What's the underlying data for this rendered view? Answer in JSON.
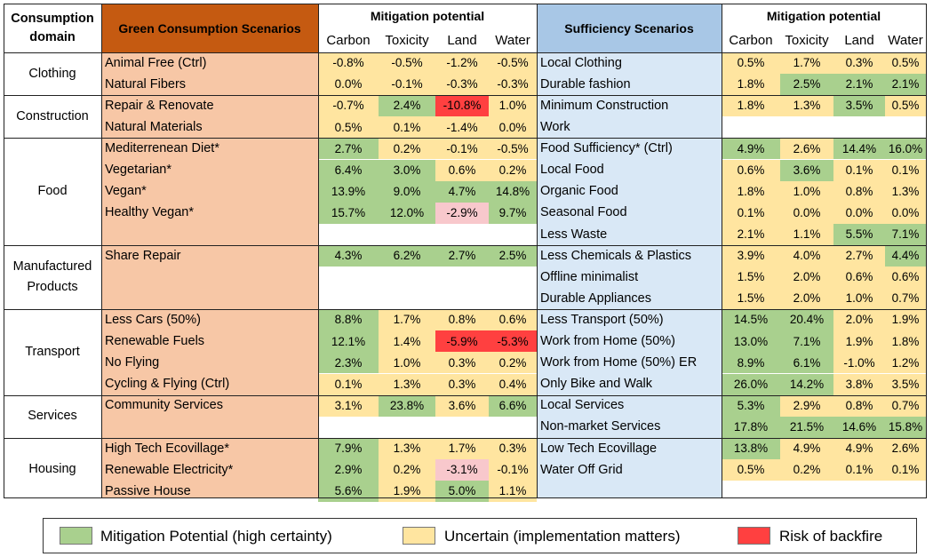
{
  "colors": {
    "green": "#a9d08e",
    "yellow": "#ffe5a0",
    "red": "#ff4040",
    "pink": "#f8c8cc",
    "orange_panel": "#f7c7a6",
    "orange_header": "#c55a11",
    "blue_panel": "#d9e8f6",
    "blue_header": "#a8c7e6"
  },
  "headers": {
    "domain": "Consumption domain",
    "green": "Green Consumption Scenarios",
    "mitig": "Mitigation potential",
    "suff": "Sufficiency Scenarios",
    "cols": [
      "Carbon",
      "Toxicity",
      "Land",
      "Water"
    ]
  },
  "domains": [
    "Clothing",
    "Construction",
    "Food",
    "Manufactured Products",
    "Transport",
    "Services",
    "Housing"
  ],
  "green_rows": [
    {
      "name": "Animal Free (Ctrl)",
      "vals": [
        "-0.8%",
        "-0.5%",
        "-1.2%",
        "-0.5%"
      ],
      "cls": [
        "y",
        "y",
        "y",
        "y"
      ]
    },
    {
      "name": "Natural Fibers",
      "vals": [
        "0.0%",
        "-0.1%",
        "-0.3%",
        "-0.3%"
      ],
      "cls": [
        "y",
        "y",
        "y",
        "y"
      ]
    },
    {
      "name": "Repair & Renovate",
      "vals": [
        "-0.7%",
        "2.4%",
        "-10.8%",
        "1.0%"
      ],
      "cls": [
        "y",
        "g",
        "r",
        "y"
      ]
    },
    {
      "name": "Natural Materials",
      "vals": [
        "0.5%",
        "0.1%",
        "-1.4%",
        "0.0%"
      ],
      "cls": [
        "y",
        "y",
        "y",
        "y"
      ]
    },
    {
      "name": "Mediterrenean Diet*",
      "vals": [
        "2.7%",
        "0.2%",
        "-0.1%",
        "-0.5%"
      ],
      "cls": [
        "g",
        "y",
        "y",
        "y"
      ]
    },
    {
      "name": "Vegetarian*",
      "vals": [
        "6.4%",
        "3.0%",
        "0.6%",
        "0.2%"
      ],
      "cls": [
        "g",
        "g",
        "y",
        "y"
      ]
    },
    {
      "name": "Vegan*",
      "vals": [
        "13.9%",
        "9.0%",
        "4.7%",
        "14.8%"
      ],
      "cls": [
        "g",
        "g",
        "g",
        "g"
      ]
    },
    {
      "name": "Healthy Vegan*",
      "vals": [
        "15.7%",
        "12.0%",
        "-2.9%",
        "9.7%"
      ],
      "cls": [
        "g",
        "g",
        "p",
        "g"
      ]
    },
    {
      "name": "",
      "vals": [
        "",
        "",
        "",
        ""
      ],
      "cls": [
        "w",
        "w",
        "w",
        "w"
      ]
    },
    {
      "name": "Share Repair",
      "vals": [
        "4.3%",
        "6.2%",
        "2.7%",
        "2.5%"
      ],
      "cls": [
        "g",
        "g",
        "g",
        "g"
      ]
    },
    {
      "name": "",
      "vals": [
        "",
        "",
        "",
        ""
      ],
      "cls": [
        "w",
        "w",
        "w",
        "w"
      ]
    },
    {
      "name": "",
      "vals": [
        "",
        "",
        "",
        ""
      ],
      "cls": [
        "w",
        "w",
        "w",
        "w"
      ]
    },
    {
      "name": "Less Cars (50%)",
      "vals": [
        "8.8%",
        "1.7%",
        "0.8%",
        "0.6%"
      ],
      "cls": [
        "g",
        "y",
        "y",
        "y"
      ]
    },
    {
      "name": "Renewable Fuels",
      "vals": [
        "12.1%",
        "1.4%",
        "-5.9%",
        "-5.3%"
      ],
      "cls": [
        "g",
        "y",
        "r",
        "r"
      ]
    },
    {
      "name": "No Flying",
      "vals": [
        "2.3%",
        "1.0%",
        "0.3%",
        "0.2%"
      ],
      "cls": [
        "g",
        "y",
        "y",
        "y"
      ]
    },
    {
      "name": "Cycling & Flying (Ctrl)",
      "vals": [
        "0.1%",
        "1.3%",
        "0.3%",
        "0.4%"
      ],
      "cls": [
        "y",
        "y",
        "y",
        "y"
      ]
    },
    {
      "name": "Community Services",
      "vals": [
        "3.1%",
        "23.8%",
        "3.6%",
        "6.6%"
      ],
      "cls": [
        "y",
        "g",
        "y",
        "g"
      ]
    },
    {
      "name": "",
      "vals": [
        "",
        "",
        "",
        ""
      ],
      "cls": [
        "w",
        "w",
        "w",
        "w"
      ]
    },
    {
      "name": "High Tech Ecovillage*",
      "vals": [
        "7.9%",
        "1.3%",
        "1.7%",
        "0.3%"
      ],
      "cls": [
        "g",
        "y",
        "y",
        "y"
      ]
    },
    {
      "name": "Renewable Electricity*",
      "vals": [
        "2.9%",
        "0.2%",
        "-3.1%",
        "-0.1%"
      ],
      "cls": [
        "g",
        "y",
        "p",
        "y"
      ]
    },
    {
      "name": "Passive House",
      "vals": [
        "5.6%",
        "1.9%",
        "5.0%",
        "1.1%"
      ],
      "cls": [
        "g",
        "y",
        "g",
        "y"
      ]
    }
  ],
  "suff_rows": [
    {
      "name": "Local Clothing",
      "vals": [
        "0.5%",
        "1.7%",
        "0.3%",
        "0.5%"
      ],
      "cls": [
        "y",
        "y",
        "y",
        "y"
      ]
    },
    {
      "name": "Durable fashion",
      "vals": [
        "1.8%",
        "2.5%",
        "2.1%",
        "2.1%"
      ],
      "cls": [
        "y",
        "g",
        "g",
        "g"
      ]
    },
    {
      "name": "Minimum Construction",
      "vals": [
        "1.8%",
        "1.3%",
        "3.5%",
        "0.5%"
      ],
      "cls": [
        "y",
        "y",
        "g",
        "y"
      ]
    },
    {
      "name": "Work",
      "vals": [
        "",
        "",
        "",
        ""
      ],
      "cls": [
        "w",
        "w",
        "w",
        "w"
      ]
    },
    {
      "name": "Food Sufficiency* (Ctrl)",
      "vals": [
        "4.9%",
        "2.6%",
        "14.4%",
        "16.0%"
      ],
      "cls": [
        "g",
        "y",
        "g",
        "g"
      ]
    },
    {
      "name": "Local Food",
      "vals": [
        "0.6%",
        "3.6%",
        "0.1%",
        "0.1%"
      ],
      "cls": [
        "y",
        "g",
        "y",
        "y"
      ]
    },
    {
      "name": "Organic Food",
      "vals": [
        "1.8%",
        "1.0%",
        "0.8%",
        "1.3%"
      ],
      "cls": [
        "y",
        "y",
        "y",
        "y"
      ]
    },
    {
      "name": "Seasonal Food",
      "vals": [
        "0.1%",
        "0.0%",
        "0.0%",
        "0.0%"
      ],
      "cls": [
        "y",
        "y",
        "y",
        "y"
      ]
    },
    {
      "name": "Less Waste",
      "vals": [
        "2.1%",
        "1.1%",
        "5.5%",
        "7.1%"
      ],
      "cls": [
        "y",
        "y",
        "g",
        "g"
      ]
    },
    {
      "name": "Less Chemicals & Plastics",
      "vals": [
        "3.9%",
        "4.0%",
        "2.7%",
        "4.4%"
      ],
      "cls": [
        "y",
        "y",
        "y",
        "g"
      ]
    },
    {
      "name": "Offline minimalist",
      "vals": [
        "1.5%",
        "2.0%",
        "0.6%",
        "0.6%"
      ],
      "cls": [
        "y",
        "y",
        "y",
        "y"
      ]
    },
    {
      "name": "Durable Appliances",
      "vals": [
        "1.5%",
        "2.0%",
        "1.0%",
        "0.7%"
      ],
      "cls": [
        "y",
        "y",
        "y",
        "y"
      ]
    },
    {
      "name": "Less Transport (50%)",
      "vals": [
        "14.5%",
        "20.4%",
        "2.0%",
        "1.9%"
      ],
      "cls": [
        "g",
        "g",
        "y",
        "y"
      ]
    },
    {
      "name": "Work from Home (50%)",
      "vals": [
        "13.0%",
        "7.1%",
        "1.9%",
        "1.8%"
      ],
      "cls": [
        "g",
        "g",
        "y",
        "y"
      ]
    },
    {
      "name": "Work from Home (50%) ER",
      "vals": [
        "8.9%",
        "6.1%",
        "-1.0%",
        "1.2%"
      ],
      "cls": [
        "g",
        "g",
        "y",
        "y"
      ]
    },
    {
      "name": "Only Bike and Walk",
      "vals": [
        "26.0%",
        "14.2%",
        "3.8%",
        "3.5%"
      ],
      "cls": [
        "g",
        "g",
        "y",
        "y"
      ]
    },
    {
      "name": "Local Services",
      "vals": [
        "5.3%",
        "2.9%",
        "0.8%",
        "0.7%"
      ],
      "cls": [
        "g",
        "y",
        "y",
        "y"
      ]
    },
    {
      "name": "Non-market Services",
      "vals": [
        "17.8%",
        "21.5%",
        "14.6%",
        "15.8%"
      ],
      "cls": [
        "g",
        "g",
        "g",
        "g"
      ]
    },
    {
      "name": "Low Tech Ecovillage",
      "vals": [
        "13.8%",
        "4.9%",
        "4.9%",
        "2.6%"
      ],
      "cls": [
        "g",
        "y",
        "y",
        "y"
      ]
    },
    {
      "name": "Water Off Grid",
      "vals": [
        "0.5%",
        "0.2%",
        "0.1%",
        "0.1%"
      ],
      "cls": [
        "y",
        "y",
        "y",
        "y"
      ]
    },
    {
      "name": "",
      "vals": [
        "",
        "",
        "",
        ""
      ],
      "cls": [
        "w",
        "w",
        "w",
        "w"
      ]
    }
  ],
  "legend": [
    {
      "label": "Mitigation Potential (high certainty)",
      "color": "green"
    },
    {
      "label": "Uncertain (implementation matters)",
      "color": "yellow"
    },
    {
      "label": "Risk of backfire",
      "color": "red"
    }
  ]
}
